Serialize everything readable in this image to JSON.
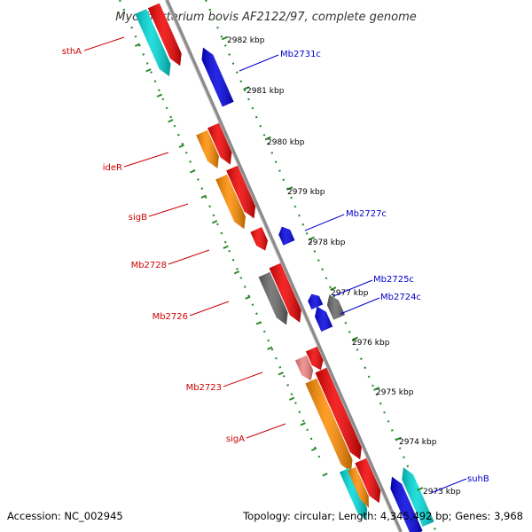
{
  "title": "Mycobacterium bovis AF2122/97, complete genome",
  "footer": {
    "accession": "Accession: NC_002945",
    "summary": "Topology: circular; Length: 4,345,492 bp; Genes: 3,968"
  },
  "colors": {
    "backbone": "#8c8c8c",
    "tick": "#2e8b2e",
    "forward_label": "#cc0000",
    "reverse_label": "#0000cc",
    "red": "#f00000",
    "orange": "#ff8c00",
    "cyan": "#00d8d8",
    "blue": "#0000e0",
    "gray": "#666666",
    "pink": "#f08080"
  },
  "kbp_ticks": [
    "2982 kbp",
    "2981 kbp",
    "2980 kbp",
    "2979 kbp",
    "2978 kbp",
    "2977 kbp",
    "2976 kbp",
    "2975 kbp",
    "2974 kbp",
    "2973 kbp"
  ],
  "forward_labels": [
    "sthA",
    "ideR",
    "sigB",
    "Mb2728",
    "Mb2726",
    "Mb2723",
    "sigA"
  ],
  "reverse_labels": [
    "Mb2731c",
    "Mb2727c",
    "Mb2725c",
    "Mb2724c",
    "suhB"
  ]
}
